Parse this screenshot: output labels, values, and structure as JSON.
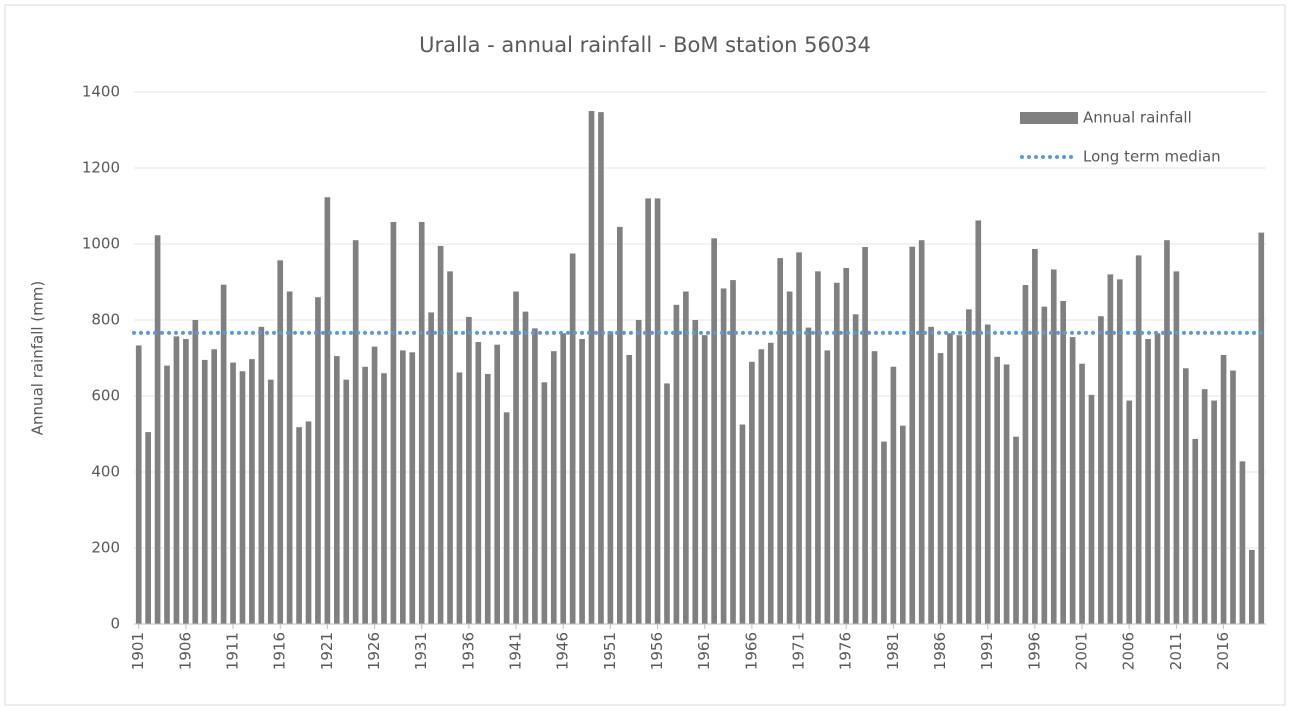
{
  "chart_data": {
    "type": "bar",
    "title": "Uralla - annual rainfall - BoM station 56034",
    "y_label": "Annual rainfall (mm)",
    "categories": [
      "1901",
      null,
      null,
      null,
      null,
      "1906",
      null,
      null,
      null,
      null,
      "1911",
      null,
      null,
      null,
      null,
      "1916",
      null,
      null,
      null,
      null,
      "1921",
      null,
      null,
      null,
      null,
      "1926",
      null,
      null,
      null,
      null,
      "1931",
      null,
      null,
      null,
      null,
      "1936",
      null,
      null,
      null,
      null,
      "1941",
      null,
      null,
      null,
      null,
      "1946",
      null,
      null,
      null,
      null,
      "1951",
      null,
      null,
      null,
      null,
      "1956",
      null,
      null,
      null,
      null,
      "1961",
      null,
      null,
      null,
      null,
      "1966",
      null,
      null,
      null,
      null,
      "1971",
      null,
      null,
      null,
      null,
      "1976",
      null,
      null,
      null,
      null,
      "1981",
      null,
      null,
      null,
      null,
      "1986",
      null,
      null,
      null,
      null,
      "1991",
      null,
      null,
      null,
      null,
      "1996",
      null,
      null,
      null,
      null,
      "2001",
      null,
      null,
      null,
      null,
      "2006",
      null,
      null,
      null,
      null,
      "2011",
      null,
      null,
      null,
      null,
      "2016",
      null,
      null,
      null,
      null
    ],
    "series": [
      {
        "name": "Annual rainfall",
        "color": "#808080",
        "values": [
          733,
          505,
          1023,
          680,
          757,
          750,
          800,
          695,
          723,
          893,
          688,
          665,
          697,
          782,
          643,
          957,
          875,
          518,
          533,
          860,
          1123,
          705,
          643,
          1010,
          677,
          730,
          660,
          1058,
          720,
          715,
          1058,
          820,
          995,
          928,
          662,
          808,
          742,
          658,
          735,
          557,
          875,
          822,
          778,
          636,
          718,
          765,
          975,
          750,
          1350,
          1347,
          770,
          1045,
          708,
          800,
          1120,
          1120,
          633,
          840,
          875,
          800,
          760,
          1015,
          883,
          905,
          525,
          690,
          723,
          740,
          963,
          875,
          978,
          780,
          928,
          720,
          898,
          937,
          815,
          992,
          718,
          480,
          677,
          522,
          993,
          1010,
          782,
          713,
          765,
          760,
          828,
          1062,
          788,
          703,
          683,
          493,
          892,
          987,
          835,
          933,
          850,
          755,
          685,
          603,
          810,
          920,
          907,
          588,
          970,
          750,
          765,
          1010,
          928,
          673,
          487,
          618,
          588,
          708,
          667,
          428,
          195,
          1030
        ]
      }
    ],
    "median_line": {
      "name": "Long term median",
      "color": "#5b9bd5",
      "value": 766
    },
    "ylim": [
      0,
      1400
    ],
    "yticks": [
      0,
      200,
      400,
      600,
      800,
      1000,
      1200,
      1400
    ],
    "grid": true
  }
}
